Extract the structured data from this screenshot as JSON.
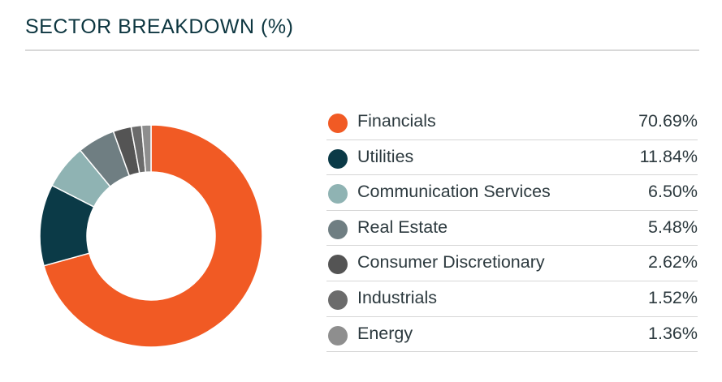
{
  "header": {
    "title": "SECTOR BREAKDOWN (%)"
  },
  "chart_data": {
    "type": "pie",
    "style": "donut",
    "title": "SECTOR BREAKDOWN (%)",
    "legend_position": "right",
    "slices": [
      {
        "label": "Financials",
        "value": 70.69,
        "display": "70.69%",
        "color": "#f15a24"
      },
      {
        "label": "Utilities",
        "value": 11.84,
        "display": "11.84%",
        "color": "#0b3a47"
      },
      {
        "label": "Communication Services",
        "value": 6.5,
        "display": "6.50%",
        "color": "#8fb3b3"
      },
      {
        "label": "Real Estate",
        "value": 5.48,
        "display": "5.48%",
        "color": "#6f7e82"
      },
      {
        "label": "Consumer Discretionary",
        "value": 2.62,
        "display": "2.62%",
        "color": "#545454"
      },
      {
        "label": "Industrials",
        "value": 1.52,
        "display": "1.52%",
        "color": "#6b6b6b"
      },
      {
        "label": "Energy",
        "value": 1.36,
        "display": "1.36%",
        "color": "#8e8e8e"
      }
    ]
  }
}
